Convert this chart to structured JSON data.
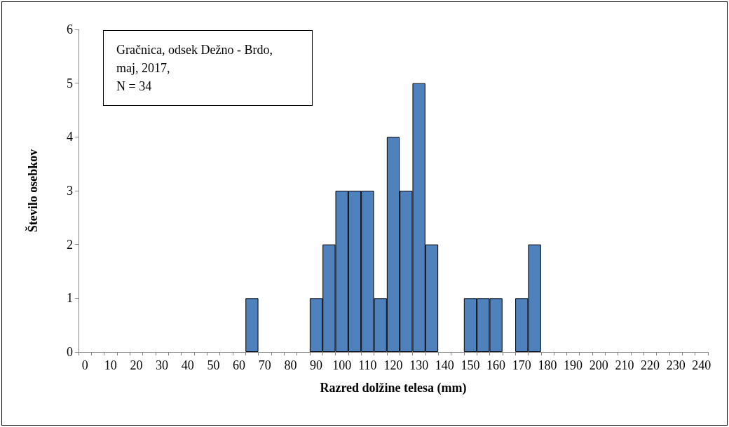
{
  "chart_data": {
    "type": "bar",
    "xlabel": "Razred dolžine telesa (mm)",
    "ylabel": "Število osebkov",
    "annotations": [
      "Gračnica, odsek Dežno - Brdo,",
      "maj, 2017,",
      "N = 34"
    ],
    "categories": [
      "0",
      null,
      "10",
      null,
      "20",
      null,
      "30",
      null,
      "40",
      null,
      "50",
      null,
      "60",
      null,
      "70",
      null,
      "80",
      null,
      "90",
      null,
      "100",
      null,
      "110",
      null,
      "120",
      null,
      "130",
      null,
      "140",
      null,
      "150",
      null,
      "160",
      null,
      "170",
      null,
      "180",
      null,
      "190",
      null,
      "200",
      null,
      "210",
      null,
      "220",
      null,
      "230",
      null,
      "240"
    ],
    "values": [
      0,
      0,
      0,
      0,
      0,
      0,
      0,
      0,
      0,
      0,
      0,
      0,
      0,
      1,
      0,
      0,
      0,
      0,
      1,
      2,
      3,
      3,
      3,
      1,
      4,
      3,
      5,
      2,
      0,
      0,
      1,
      1,
      1,
      0,
      1,
      2,
      0,
      0,
      0,
      0,
      0,
      0,
      0,
      0,
      0,
      0,
      0,
      0,
      0
    ],
    "color": "#4f81bd",
    "ylim": [
      0,
      6
    ],
    "yticks": [
      0,
      1,
      2,
      3,
      4,
      5,
      6
    ],
    "grid": false
  }
}
